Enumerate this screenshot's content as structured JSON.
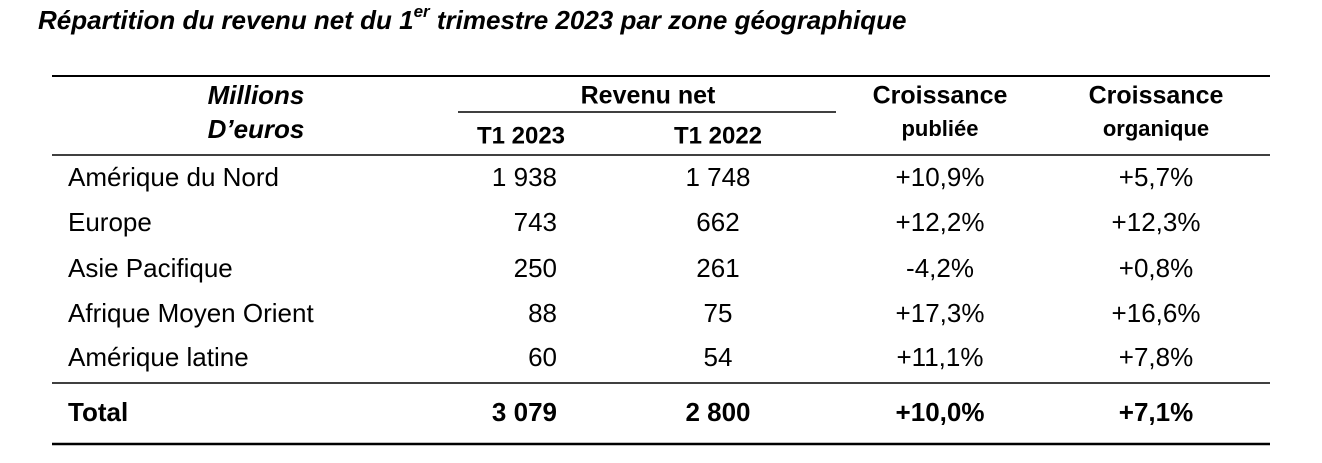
{
  "title": {
    "before": "Répartition du revenu net du 1",
    "superscript": "er",
    "after": " trimestre 2023 par zone géographique"
  },
  "table": {
    "header": {
      "label": [
        "Millions",
        "D’euros"
      ],
      "group": "Revenu net",
      "columns": [
        "T1 2023",
        "T1 2022"
      ],
      "growth": [
        [
          "Croissance",
          "publiée"
        ],
        [
          "Croissance",
          "organique"
        ]
      ]
    },
    "rows": [
      [
        "Amérique du Nord",
        "1 938",
        "1 748",
        "+10,9%",
        "+5,7%"
      ],
      [
        "Europe",
        "743",
        "662",
        "+12,2%",
        "+12,3%"
      ],
      [
        "Asie Pacifique",
        "250",
        "261",
        "-4,2%",
        "+0,8%"
      ],
      [
        "Afrique Moyen Orient",
        "88",
        "75",
        "+17,3%",
        "+16,6%"
      ],
      [
        "Amérique latine",
        "60",
        "54",
        "+11,1%",
        "+7,8%"
      ]
    ],
    "total": [
      "Total",
      "3 079",
      "2 800",
      "+10,0%",
      "+7,1%"
    ]
  }
}
